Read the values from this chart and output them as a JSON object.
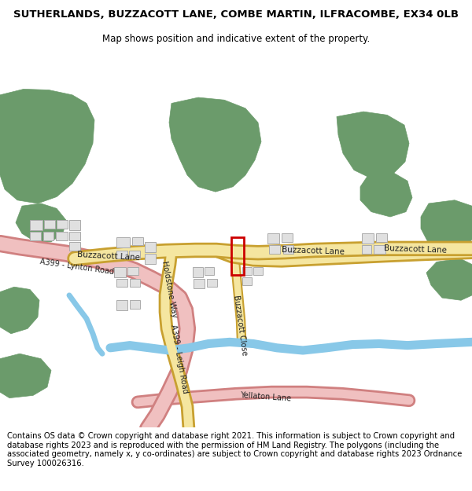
{
  "title_line1": "SUTHERLANDS, BUZZACOTT LANE, COMBE MARTIN, ILFRACOMBE, EX34 0LB",
  "title_line2": "Map shows position and indicative extent of the property.",
  "footer": "Contains OS data © Crown copyright and database right 2021. This information is subject to Crown copyright and database rights 2023 and is reproduced with the permission of HM Land Registry. The polygons (including the associated geometry, namely x, y co-ordinates) are subject to Crown copyright and database rights 2023 Ordnance Survey 100026316.",
  "bg_color": "#ffffff",
  "map_bg": "#f7f7f7",
  "green_color": "#6b9b6b",
  "road_yellow_fill": "#f5e6a0",
  "road_yellow_edge": "#c8a030",
  "road_pink_fill": "#f0c0c0",
  "road_pink_edge": "#d08080",
  "water_color": "#88c8e8",
  "building_fill": "#e0e0e0",
  "building_edge": "#aaaaaa",
  "plot_edge": "#cc0000",
  "title_fontsize": 9.5,
  "subtitle_fontsize": 8.5,
  "footer_fontsize": 7.2,
  "label_fontsize": 7.0
}
